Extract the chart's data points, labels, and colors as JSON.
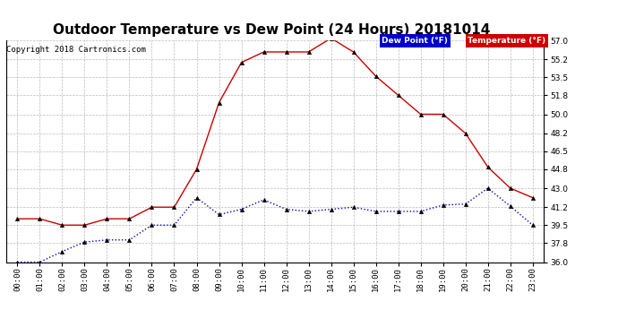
{
  "title": "Outdoor Temperature vs Dew Point (24 Hours) 20181014",
  "copyright": "Copyright 2018 Cartronics.com",
  "hours": [
    "00:00",
    "01:00",
    "02:00",
    "03:00",
    "04:00",
    "05:00",
    "06:00",
    "07:00",
    "08:00",
    "09:00",
    "10:00",
    "11:00",
    "12:00",
    "13:00",
    "14:00",
    "15:00",
    "16:00",
    "17:00",
    "18:00",
    "19:00",
    "20:00",
    "21:00",
    "22:00",
    "23:00"
  ],
  "temperature": [
    40.1,
    40.1,
    39.5,
    39.5,
    40.1,
    40.1,
    41.2,
    41.2,
    44.8,
    51.1,
    54.9,
    55.9,
    55.9,
    55.9,
    57.2,
    55.9,
    53.6,
    51.8,
    50.0,
    50.0,
    48.2,
    45.0,
    43.0,
    42.1
  ],
  "dew_point": [
    36.0,
    36.0,
    37.0,
    37.9,
    38.1,
    38.1,
    39.5,
    39.5,
    42.1,
    40.5,
    41.0,
    41.9,
    41.0,
    40.8,
    41.0,
    41.2,
    40.8,
    40.8,
    40.8,
    41.4,
    41.5,
    43.0,
    41.3,
    39.5
  ],
  "temp_color": "#cc0000",
  "dew_color": "#0000cc",
  "ylim_min": 36.0,
  "ylim_max": 57.0,
  "yticks": [
    36.0,
    37.8,
    39.5,
    41.2,
    43.0,
    44.8,
    46.5,
    48.2,
    50.0,
    51.8,
    53.5,
    55.2,
    57.0
  ],
  "bg_color": "#ffffff",
  "plot_bg_color": "#ffffff",
  "grid_color": "#aaaaaa",
  "legend_dew_bg": "#0000cc",
  "legend_temp_bg": "#cc0000",
  "legend_text_color": "#ffffff",
  "title_fontsize": 11,
  "copyright_fontsize": 6.5,
  "tick_fontsize": 6.5,
  "marker": "^",
  "marker_color": "#000000",
  "marker_size": 3
}
